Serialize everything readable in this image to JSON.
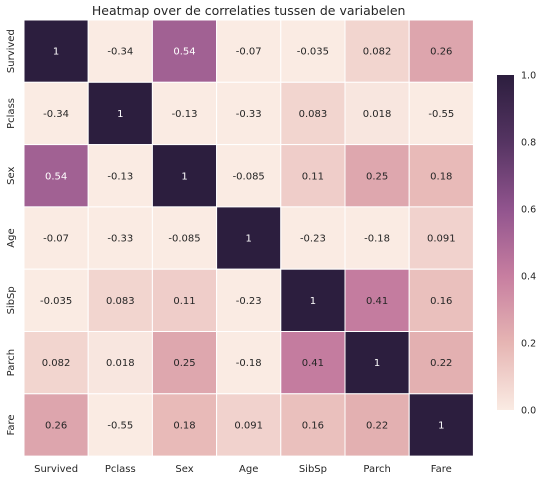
{
  "chart_data": {
    "type": "heatmap",
    "title": "Heatmap over de correlaties tussen de variabelen",
    "xlabel": "",
    "ylabel": "",
    "x_categories": [
      "Survived",
      "Pclass",
      "Sex",
      "Age",
      "SibSp",
      "Parch",
      "Fare"
    ],
    "y_categories": [
      "Survived",
      "Pclass",
      "Sex",
      "Age",
      "SibSp",
      "Parch",
      "Fare"
    ],
    "values": [
      [
        1,
        -0.34,
        0.54,
        -0.07,
        -0.035,
        0.082,
        0.26
      ],
      [
        -0.34,
        1,
        -0.13,
        -0.33,
        0.083,
        0.018,
        -0.55
      ],
      [
        0.54,
        -0.13,
        1,
        -0.085,
        0.11,
        0.25,
        0.18
      ],
      [
        -0.07,
        -0.33,
        -0.085,
        1,
        -0.23,
        -0.18,
        0.091
      ],
      [
        -0.035,
        0.083,
        0.11,
        -0.23,
        1,
        0.41,
        0.16
      ],
      [
        0.082,
        0.018,
        0.25,
        -0.18,
        0.41,
        1,
        0.22
      ],
      [
        0.26,
        -0.55,
        0.18,
        0.091,
        0.16,
        0.22,
        1
      ]
    ],
    "annotations": [
      [
        "1",
        "-0.34",
        "0.54",
        "-0.07",
        "-0.035",
        "0.082",
        "0.26"
      ],
      [
        "-0.34",
        "1",
        "-0.13",
        "-0.33",
        "0.083",
        "0.018",
        "-0.55"
      ],
      [
        "0.54",
        "-0.13",
        "1",
        "-0.085",
        "0.11",
        "0.25",
        "0.18"
      ],
      [
        "-0.07",
        "-0.33",
        "-0.085",
        "1",
        "-0.23",
        "-0.18",
        "0.091"
      ],
      [
        "-0.035",
        "0.083",
        "0.11",
        "-0.23",
        "1",
        "0.41",
        "0.16"
      ],
      [
        "0.082",
        "0.018",
        "0.25",
        "-0.18",
        "0.41",
        "1",
        "0.22"
      ],
      [
        "0.26",
        "-0.55",
        "0.18",
        "0.091",
        "0.16",
        "0.22",
        "1"
      ]
    ],
    "colorbar": {
      "vmin": 0.0,
      "vmax": 1.0,
      "ticks": [
        0.0,
        0.2,
        0.4,
        0.6,
        0.8,
        1.0
      ],
      "tick_labels": [
        "0.0",
        "0.2",
        "0.4",
        "0.6",
        "0.8",
        "1.0"
      ],
      "location": "right"
    },
    "colormap_stops": [
      "#faebe3",
      "#e6b5b3",
      "#c77ea0",
      "#91548e",
      "#553462",
      "#2c1e3e"
    ],
    "grid_line_color": "#ffffff",
    "light_text_color": "#ffffff",
    "dark_text_color": "#262626"
  }
}
